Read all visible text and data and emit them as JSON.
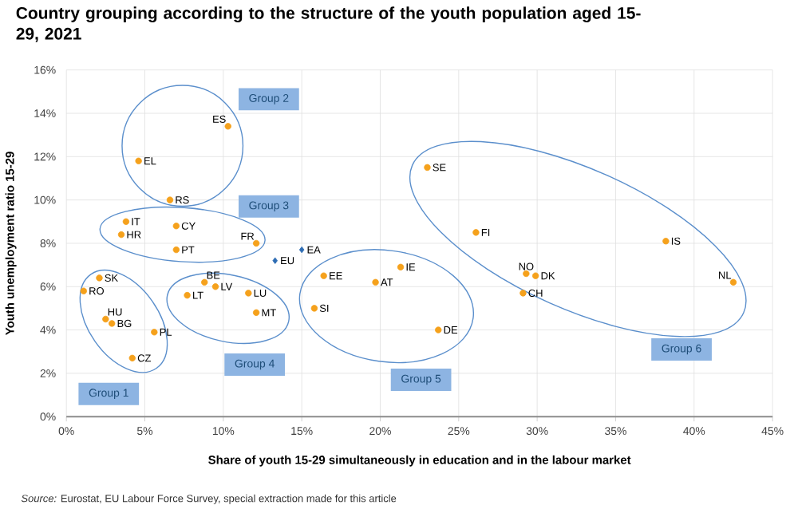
{
  "chart_data": {
    "type": "scatter",
    "title": "Country grouping according to the structure of the youth population aged 15-29, 2021",
    "xlabel": "Share of youth 15-29 simultaneously in education and in the labour market",
    "ylabel": "Youth unemployment ratio 15-29",
    "series": [
      {
        "color": "#f5a11c",
        "x": [
          10.3,
          4.6,
          6.6,
          3.8,
          3.5,
          7.0,
          7.0,
          12.1,
          2.1,
          1.1,
          2.5,
          2.9,
          5.6,
          4.2,
          8.8,
          9.5,
          7.7,
          11.6,
          12.1,
          16.4,
          19.7,
          21.3,
          15.8,
          23.0,
          26.1,
          29.3,
          29.9,
          29.1,
          38.2,
          42.5,
          23.7
        ],
        "values": [
          13.4,
          11.8,
          10.0,
          9.0,
          8.4,
          8.8,
          7.7,
          8.0,
          6.4,
          5.8,
          4.5,
          4.3,
          3.9,
          2.7,
          6.2,
          6.0,
          5.6,
          5.7,
          4.8,
          6.5,
          6.2,
          6.9,
          5.0,
          11.5,
          8.5,
          6.6,
          6.5,
          5.7,
          8.1,
          6.2,
          4.0
        ],
        "value_labels": [
          "ES",
          "EL",
          "RS",
          "IT",
          "HR",
          "CY",
          "PT",
          "FR",
          "SK",
          "RO",
          "HU",
          "BG",
          "PL",
          "CZ",
          "BE",
          "LV",
          "LT",
          "LU",
          "MT",
          "EE",
          "AT",
          "IE",
          "SI",
          "SE",
          "FI",
          "NO",
          "DK",
          "CH",
          "IS",
          "NL",
          "DE"
        ]
      },
      {
        "color": "#2e6db4",
        "marker": "diamond",
        "x": [
          15.0,
          13.3
        ],
        "values": [
          7.7,
          7.2
        ],
        "value_labels": [
          "EA",
          "EU"
        ]
      }
    ],
    "xlim": [
      0,
      45
    ],
    "ylim": [
      0,
      16
    ],
    "xticks": [
      {
        "value": 0,
        "label": "0%"
      },
      {
        "value": 5,
        "label": "5%"
      },
      {
        "value": 10,
        "label": "10%"
      },
      {
        "value": 15,
        "label": "15%"
      },
      {
        "value": 20,
        "label": "20%"
      },
      {
        "value": 25,
        "label": "25%"
      },
      {
        "value": 30,
        "label": "30%"
      },
      {
        "value": 35,
        "label": "35%"
      },
      {
        "value": 40,
        "label": "40%"
      },
      {
        "value": 45,
        "label": "45%"
      }
    ],
    "yticks": [
      {
        "value": 0,
        "label": "0%"
      },
      {
        "value": 2,
        "label": "2%"
      },
      {
        "value": 4,
        "label": "4%"
      },
      {
        "value": 6,
        "label": "6%"
      },
      {
        "value": 8,
        "label": "8%"
      },
      {
        "value": 10,
        "label": "10%"
      },
      {
        "value": 12,
        "label": "12%"
      },
      {
        "value": 14,
        "label": "14%"
      },
      {
        "value": 16,
        "label": "16%"
      }
    ],
    "grid": true,
    "marker": "circle",
    "annotations": [
      "Group 1",
      "Group 2",
      "Group 3",
      "Group 4",
      "Group 5",
      "Group 6",
      "*Source:* Eurostat, EU Labour Force Survey, special extraction made for this article"
    ]
  }
}
